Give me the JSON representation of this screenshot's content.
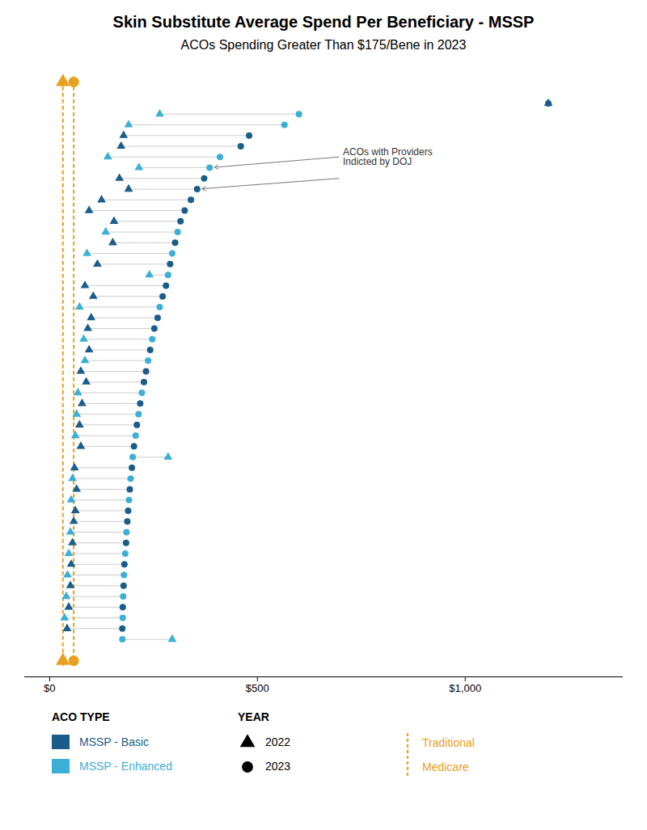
{
  "chart_data": {
    "type": "dumbbell",
    "title": "Skin Substitute Average Spend Per Beneficiary  - MSSP",
    "subtitle": "ACOs Spending Greater Than $175/Bene in 2023",
    "orientation": "horizontal",
    "tick_labels": "x",
    "grid": false,
    "legend": "bottom",
    "xlim": [
      -60,
      1380
    ],
    "xticks": [
      {
        "value": 0,
        "label": "$0"
      },
      {
        "value": 500,
        "label": "$500"
      },
      {
        "value": 1000,
        "label": "$1,000"
      }
    ],
    "categories": [
      null,
      null,
      null,
      null,
      null,
      null,
      null,
      null,
      null,
      null,
      null,
      null,
      null,
      null,
      null,
      null,
      null,
      null,
      null,
      null,
      null,
      null,
      null,
      null,
      null,
      null,
      null,
      null,
      null,
      null,
      null,
      null,
      null,
      null,
      null,
      null,
      null,
      null,
      null,
      null,
      null,
      null,
      null,
      null,
      null,
      null,
      null,
      null,
      null,
      null,
      null
    ],
    "groups_title": "ACO TYPE",
    "groups": [
      {
        "name": "MSSP - Basic",
        "color": "#1A5C8A"
      },
      {
        "name": "MSSP - Enhanced",
        "color": "#3BAFD6"
      }
    ],
    "group": [
      "MSSP - Basic",
      "MSSP - Enhanced",
      "MSSP - Enhanced",
      "MSSP - Basic",
      "MSSP - Basic",
      "MSSP - Enhanced",
      "MSSP - Enhanced",
      "MSSP - Basic",
      "MSSP - Basic",
      "MSSP - Basic",
      "MSSP - Basic",
      "MSSP - Basic",
      "MSSP - Enhanced",
      "MSSP - Basic",
      "MSSP - Enhanced",
      "MSSP - Basic",
      "MSSP - Enhanced",
      "MSSP - Basic",
      "MSSP - Basic",
      "MSSP - Enhanced",
      "MSSP - Basic",
      "MSSP - Basic",
      "MSSP - Enhanced",
      "MSSP - Basic",
      "MSSP - Enhanced",
      "MSSP - Basic",
      "MSSP - Basic",
      "MSSP - Enhanced",
      "MSSP - Basic",
      "MSSP - Enhanced",
      "MSSP - Basic",
      "MSSP - Enhanced",
      "MSSP - Basic",
      "MSSP - Enhanced",
      "MSSP - Basic",
      "MSSP - Enhanced",
      "MSSP - Basic",
      "MSSP - Enhanced",
      "MSSP - Basic",
      "MSSP - Basic",
      "MSSP - Enhanced",
      "MSSP - Basic",
      "MSSP - Enhanced",
      "MSSP - Basic",
      "MSSP - Enhanced",
      "MSSP - Basic",
      "MSSP - Enhanced",
      "MSSP - Basic",
      "MSSP - Enhanced",
      "MSSP - Basic",
      "MSSP - Enhanced"
    ],
    "series_title": "YEAR",
    "series": [
      {
        "name": "2022",
        "marker": "triangle",
        "values": [
          1200,
          265,
          190,
          178,
          172,
          140,
          215,
          168,
          190,
          125,
          95,
          155,
          135,
          152,
          90,
          115,
          240,
          85,
          105,
          72,
          100,
          92,
          82,
          95,
          85,
          75,
          88,
          68,
          78,
          65,
          72,
          62,
          75,
          285,
          60,
          55,
          65,
          52,
          62,
          58,
          50,
          55,
          46,
          52,
          43,
          50,
          40,
          46,
          36,
          42,
          295
        ]
      },
      {
        "name": "2023",
        "marker": "circle",
        "values": [
          1200,
          600,
          565,
          480,
          460,
          410,
          385,
          372,
          355,
          340,
          325,
          315,
          308,
          302,
          295,
          290,
          285,
          280,
          272,
          265,
          260,
          252,
          247,
          242,
          237,
          232,
          227,
          222,
          218,
          214,
          210,
          207,
          203,
          200,
          198,
          195,
          193,
          191,
          189,
          187,
          185,
          184,
          182,
          180,
          179,
          178,
          177,
          176,
          176,
          175,
          175
        ]
      }
    ],
    "reference": {
      "name": "Traditional\nMedicare",
      "color": "#E8A020",
      "line_style": "dashed",
      "values": [
        32,
        58
      ]
    },
    "annotation": {
      "text": "ACOs with Providers\nIndicted by DOJ",
      "rows": [
        false,
        false,
        false,
        false,
        false,
        false,
        true,
        false,
        true,
        false,
        false,
        false,
        false,
        false,
        false,
        false,
        false,
        false,
        false,
        false,
        false,
        false,
        false,
        false,
        false,
        false,
        false,
        false,
        false,
        false,
        false,
        false,
        false,
        false,
        false,
        false,
        false,
        false,
        false,
        false,
        false,
        false,
        false,
        false,
        false,
        false,
        false,
        false,
        false,
        false,
        false
      ]
    }
  }
}
